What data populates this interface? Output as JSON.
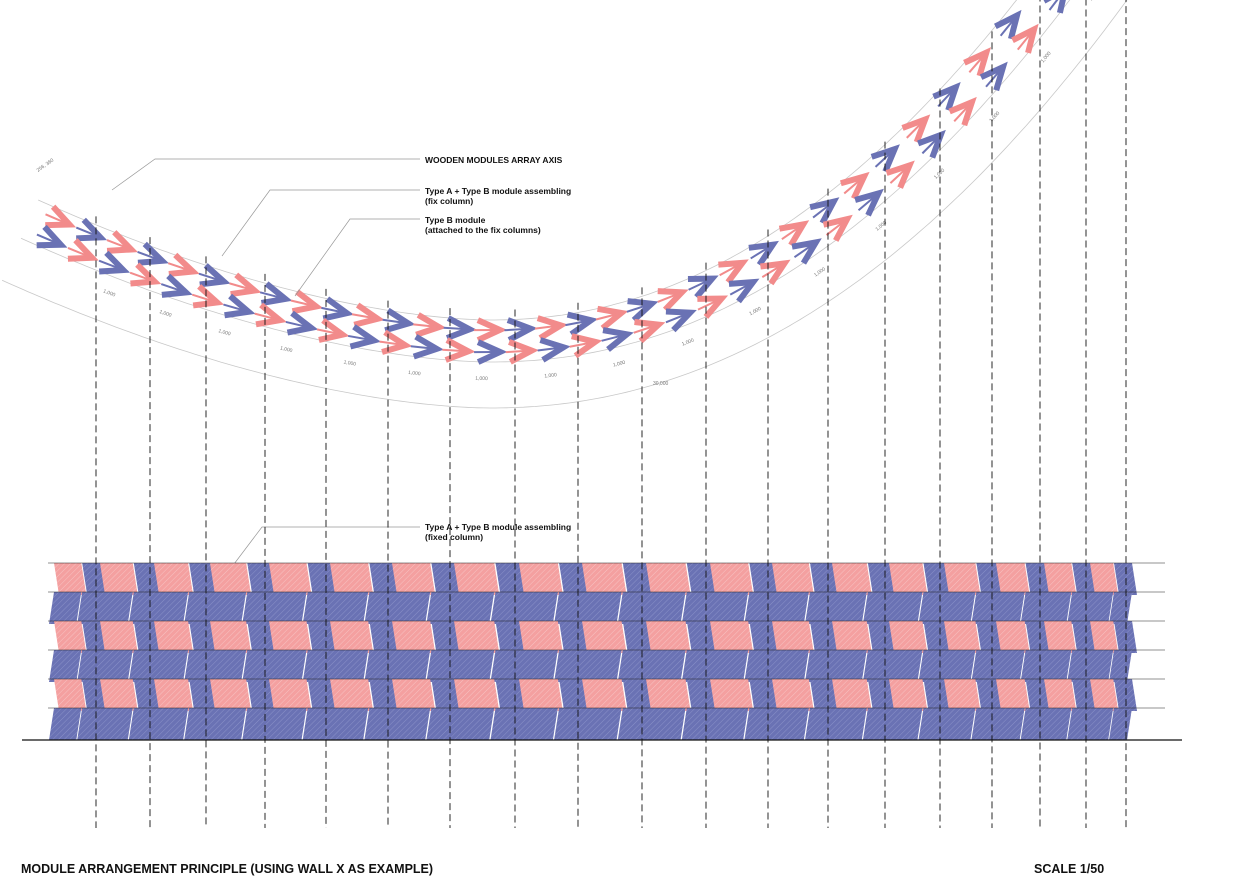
{
  "annotations": {
    "axis_label": "WOODEN MODULES ARRAY AXIS",
    "typeAB_fix_line1": "Type A + Type B module assembling",
    "typeAB_fix_line2": "(fix column)",
    "typeB_line1": "Type B module",
    "typeB_line2": "(attached to the fix columns)",
    "typeAB_fixed_line1": "Type A + Type B module assembling",
    "typeAB_fixed_line2": "(fixed column)"
  },
  "dimension_labels": {
    "segment": "1,000",
    "outer_arc": "30,000",
    "end_label": "256, 360"
  },
  "footer": {
    "title": "MODULE ARRANGEMENT PRINCIPLE (USING WALL X AS EXAMPLE)",
    "scale": "SCALE 1/50"
  },
  "colors": {
    "type_a_pink": "#f28b8b",
    "type_b_blue": "#6a72b4",
    "line": "#111111",
    "guide": "#c8c8c8"
  }
}
